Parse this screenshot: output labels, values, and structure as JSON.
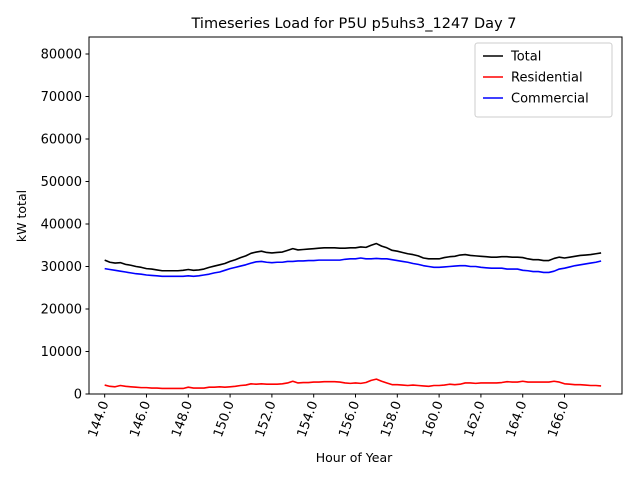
{
  "chart_data": {
    "type": "line",
    "title": "Timeseries Load for P5U p5uhs3_1247  Day 7",
    "xlabel": "Hour of Year",
    "ylabel": "kW total",
    "xlim": [
      143.25,
      168.75
    ],
    "ylim": [
      0,
      84000
    ],
    "xticks": [
      144,
      146,
      148,
      150,
      152,
      154,
      156,
      158,
      160,
      162,
      164,
      166
    ],
    "xtick_labels": [
      "144.0",
      "146.0",
      "148.0",
      "150.0",
      "152.0",
      "154.0",
      "156.0",
      "158.0",
      "160.0",
      "162.0",
      "164.0",
      "166.0"
    ],
    "yticks": [
      0,
      10000,
      20000,
      30000,
      40000,
      50000,
      60000,
      70000,
      80000
    ],
    "ytick_labels": [
      "0",
      "10000",
      "20000",
      "30000",
      "40000",
      "50000",
      "60000",
      "70000",
      "80000"
    ],
    "legend_position": "top-right",
    "x": [
      144.0,
      144.25,
      144.5,
      144.75,
      145.0,
      145.25,
      145.5,
      145.75,
      146.0,
      146.25,
      146.5,
      146.75,
      147.0,
      147.25,
      147.5,
      147.75,
      148.0,
      148.25,
      148.5,
      148.75,
      149.0,
      149.25,
      149.5,
      149.75,
      150.0,
      150.25,
      150.5,
      150.75,
      151.0,
      151.25,
      151.5,
      151.75,
      152.0,
      152.25,
      152.5,
      152.75,
      153.0,
      153.25,
      153.5,
      153.75,
      154.0,
      154.25,
      154.5,
      154.75,
      155.0,
      155.25,
      155.5,
      155.75,
      156.0,
      156.25,
      156.5,
      156.75,
      157.0,
      157.25,
      157.5,
      157.75,
      158.0,
      158.25,
      158.5,
      158.75,
      159.0,
      159.25,
      159.5,
      159.75,
      160.0,
      160.25,
      160.5,
      160.75,
      161.0,
      161.25,
      161.5,
      161.75,
      162.0,
      162.25,
      162.5,
      162.75,
      163.0,
      163.25,
      163.5,
      163.75,
      164.0,
      164.25,
      164.5,
      164.75,
      165.0,
      165.25,
      165.5,
      165.75,
      166.0,
      166.25,
      166.5,
      166.75,
      167.0,
      167.25,
      167.5,
      167.75
    ],
    "series": [
      {
        "name": "Total",
        "color": "#000000",
        "values": [
          31500,
          31000,
          30800,
          30900,
          30500,
          30300,
          30000,
          29800,
          29500,
          29400,
          29200,
          29000,
          29000,
          29000,
          29000,
          29100,
          29300,
          29100,
          29200,
          29400,
          29800,
          30100,
          30400,
          30700,
          31200,
          31600,
          32100,
          32500,
          33100,
          33400,
          33600,
          33300,
          33200,
          33300,
          33400,
          33800,
          34200,
          33900,
          34000,
          34100,
          34200,
          34300,
          34400,
          34400,
          34400,
          34300,
          34300,
          34400,
          34400,
          34600,
          34500,
          35000,
          35400,
          34800,
          34400,
          33800,
          33600,
          33300,
          33000,
          32800,
          32500,
          32000,
          31800,
          31800,
          31800,
          32100,
          32300,
          32400,
          32700,
          32800,
          32600,
          32500,
          32400,
          32300,
          32200,
          32200,
          32300,
          32300,
          32200,
          32200,
          32100,
          31800,
          31600,
          31600,
          31400,
          31400,
          31900,
          32200,
          32000,
          32200,
          32400,
          32600,
          32700,
          32800,
          33000,
          33200
        ]
      },
      {
        "name": "Residential",
        "color": "#ff0000",
        "values": [
          2100,
          1800,
          1700,
          2000,
          1800,
          1700,
          1600,
          1500,
          1500,
          1400,
          1400,
          1300,
          1300,
          1300,
          1300,
          1300,
          1600,
          1400,
          1400,
          1400,
          1600,
          1600,
          1700,
          1600,
          1700,
          1800,
          2000,
          2100,
          2400,
          2300,
          2400,
          2300,
          2300,
          2300,
          2400,
          2600,
          3000,
          2600,
          2700,
          2700,
          2800,
          2800,
          2900,
          2900,
          2900,
          2800,
          2600,
          2500,
          2600,
          2500,
          2700,
          3200,
          3500,
          3000,
          2600,
          2200,
          2200,
          2100,
          2000,
          2100,
          2000,
          1900,
          1800,
          2000,
          2000,
          2100,
          2300,
          2200,
          2300,
          2600,
          2600,
          2500,
          2600,
          2600,
          2600,
          2600,
          2700,
          2900,
          2800,
          2800,
          3000,
          2800,
          2800,
          2800,
          2800,
          2800,
          3000,
          2800,
          2400,
          2300,
          2200,
          2200,
          2100,
          2000,
          2000,
          1900
        ]
      },
      {
        "name": "Commercial",
        "color": "#0000ff",
        "values": [
          29500,
          29300,
          29100,
          28900,
          28700,
          28500,
          28300,
          28200,
          28000,
          27900,
          27800,
          27700,
          27700,
          27700,
          27700,
          27700,
          27800,
          27700,
          27800,
          28000,
          28200,
          28500,
          28700,
          29100,
          29500,
          29800,
          30100,
          30400,
          30800,
          31100,
          31200,
          31000,
          30900,
          31000,
          31000,
          31200,
          31200,
          31300,
          31300,
          31400,
          31400,
          31500,
          31500,
          31500,
          31500,
          31500,
          31700,
          31800,
          31800,
          32000,
          31800,
          31800,
          31900,
          31800,
          31800,
          31600,
          31400,
          31200,
          31000,
          30700,
          30500,
          30200,
          30000,
          29800,
          29800,
          29900,
          30000,
          30100,
          30200,
          30200,
          30000,
          30000,
          29800,
          29700,
          29600,
          29600,
          29600,
          29400,
          29400,
          29400,
          29100,
          29000,
          28800,
          28800,
          28600,
          28600,
          28900,
          29400,
          29600,
          29900,
          30200,
          30400,
          30600,
          30800,
          31000,
          31300
        ]
      }
    ]
  }
}
